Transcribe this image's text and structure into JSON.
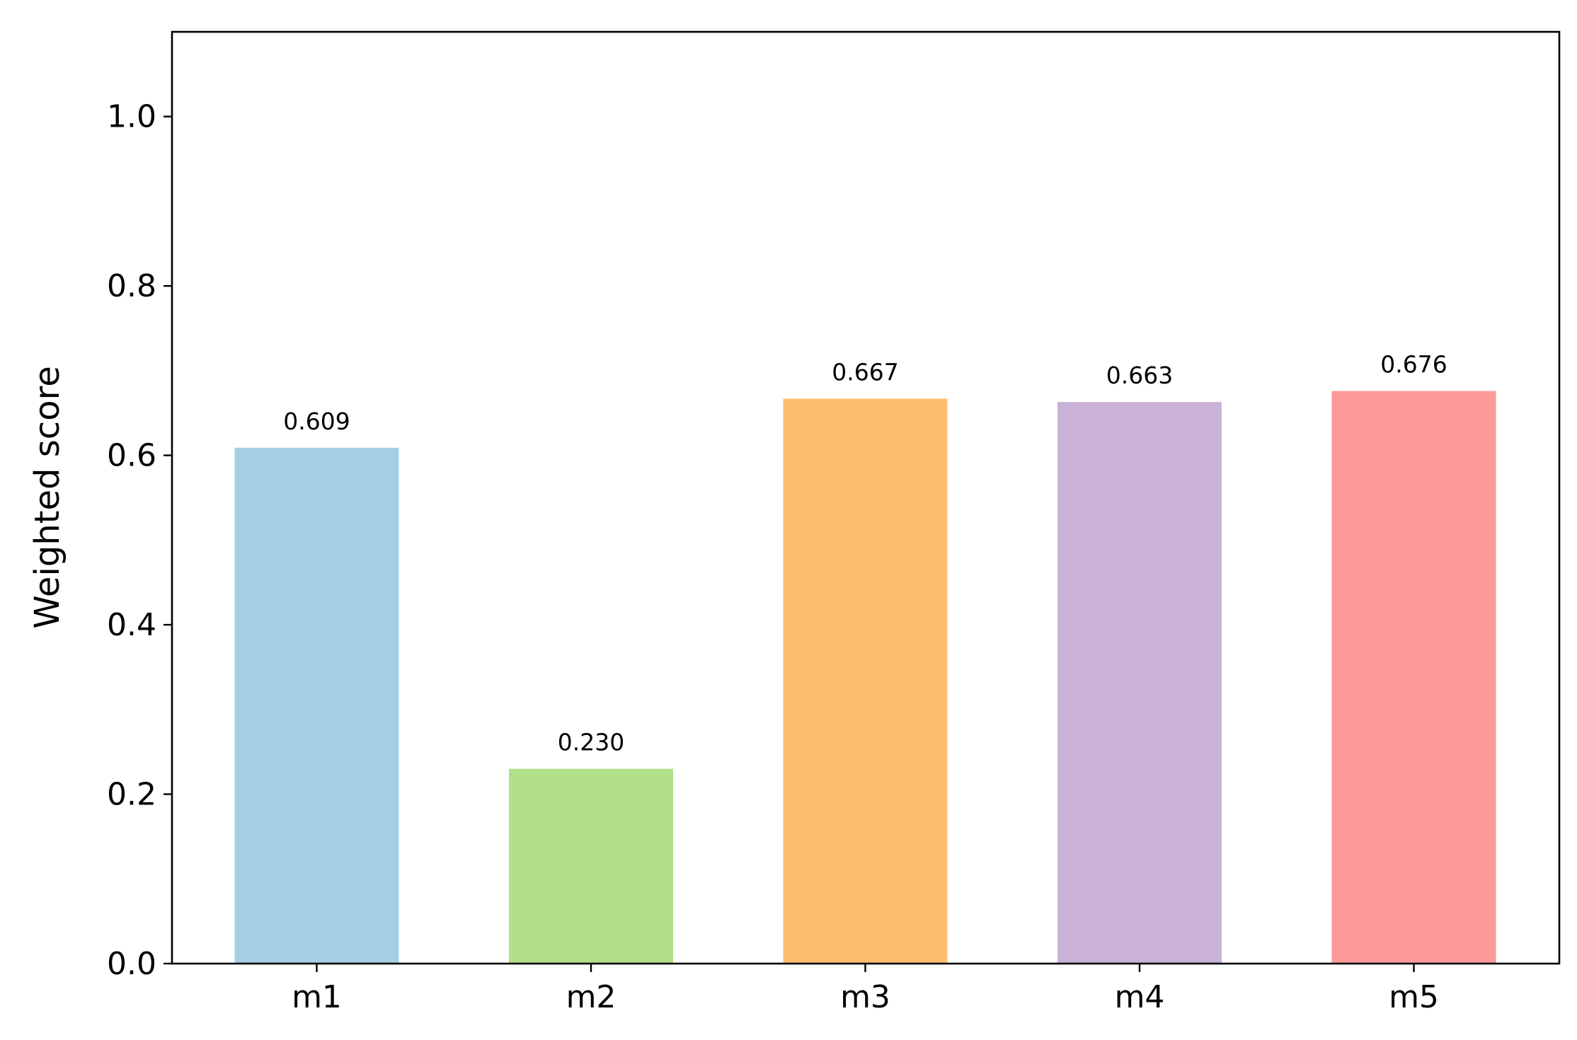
{
  "chart_data": {
    "type": "bar",
    "title": "",
    "xlabel": "",
    "ylabel": "Weighted score",
    "categories": [
      "m1",
      "m2",
      "m3",
      "m4",
      "m5"
    ],
    "values": [
      0.609,
      0.23,
      0.667,
      0.663,
      0.676
    ],
    "value_labels": [
      "0.609",
      "0.230",
      "0.667",
      "0.663",
      "0.676"
    ],
    "colors": [
      "#a6cee3",
      "#b2df8a",
      "#fdbf6f",
      "#cab2d6",
      "#fb9a99"
    ],
    "ylim": [
      0,
      1.1
    ],
    "yticks": [
      0.0,
      0.2,
      0.4,
      0.6,
      0.8,
      1.0
    ],
    "ytick_labels": [
      "0.0",
      "0.2",
      "0.4",
      "0.6",
      "0.8",
      "1.0"
    ],
    "grid": false,
    "legend": "none"
  }
}
